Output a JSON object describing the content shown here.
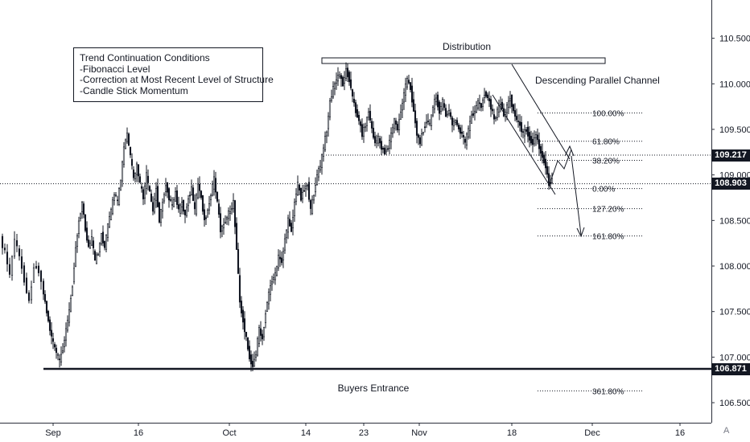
{
  "chart_data": {
    "type": "candlestick",
    "instrument_note": "",
    "y_axis": {
      "ticks": [
        "110.500",
        "110.000",
        "109.500",
        "109.000",
        "108.500",
        "108.000",
        "107.500",
        "107.000",
        "106.500"
      ],
      "tick_values": [
        110.5,
        110.0,
        109.5,
        109.0,
        108.5,
        108.0,
        107.5,
        107.0,
        106.5
      ],
      "range": [
        106.28,
        110.92
      ]
    },
    "x_axis": {
      "ticks": [
        "Sep",
        "16",
        "Oct",
        "14",
        "23",
        "Nov",
        "18",
        "Dec",
        "16"
      ]
    },
    "price_labels": [
      {
        "text": "109.217",
        "value": 109.217
      },
      {
        "text": "108.903",
        "value": 108.903
      },
      {
        "text": "106.871",
        "value": 106.871
      }
    ],
    "horizontal_levels": [
      {
        "name": "resistance-dotted",
        "value": 109.217
      },
      {
        "name": "current-dotted",
        "value": 108.903
      },
      {
        "name": "buyers-entrance",
        "value": 106.871
      }
    ],
    "annotations": {
      "distribution": "Distribution",
      "channel": "Descending Parallel Channel",
      "buyers": "Buyers Entrance"
    },
    "conditions_box": {
      "lines": [
        "Trend Continuation Conditions",
        "-Fibonacci Level",
        "-Correction at Most Recent Level of Structure",
        "-Candle Stick Momentum"
      ]
    },
    "fibonacci": [
      {
        "label": "100.00%",
        "value": 109.68
      },
      {
        "label": "61.80%",
        "value": 109.37
      },
      {
        "label": "38.20%",
        "value": 109.16
      },
      {
        "label": "0.00%",
        "value": 108.85
      },
      {
        "label": "127.20%",
        "value": 108.63
      },
      {
        "label": "161.80%",
        "value": 108.33
      },
      {
        "label": "361.80%",
        "value": 106.63
      }
    ],
    "price_path": [
      [
        0,
        108.3
      ],
      [
        6,
        108.15
      ],
      [
        12,
        107.9
      ],
      [
        18,
        108.3
      ],
      [
        24,
        108.1
      ],
      [
        30,
        107.85
      ],
      [
        36,
        107.6
      ],
      [
        42,
        108.0
      ],
      [
        48,
        107.95
      ],
      [
        54,
        107.7
      ],
      [
        58,
        107.5
      ],
      [
        62,
        107.3
      ],
      [
        66,
        107.15
      ],
      [
        70,
        107.05
      ],
      [
        74,
        106.95
      ],
      [
        78,
        107.1
      ],
      [
        82,
        107.3
      ],
      [
        86,
        107.5
      ],
      [
        90,
        107.8
      ],
      [
        94,
        108.2
      ],
      [
        98,
        108.5
      ],
      [
        102,
        108.7
      ],
      [
        106,
        108.4
      ],
      [
        110,
        108.2
      ],
      [
        114,
        108.3
      ],
      [
        118,
        108.05
      ],
      [
        122,
        108.15
      ],
      [
        126,
        108.35
      ],
      [
        130,
        108.2
      ],
      [
        134,
        108.45
      ],
      [
        138,
        108.6
      ],
      [
        142,
        108.8
      ],
      [
        146,
        108.7
      ],
      [
        150,
        108.95
      ],
      [
        154,
        109.3
      ],
      [
        158,
        109.45
      ],
      [
        162,
        109.2
      ],
      [
        166,
        108.95
      ],
      [
        170,
        109.1
      ],
      [
        174,
        108.9
      ],
      [
        178,
        108.75
      ],
      [
        182,
        109.0
      ],
      [
        186,
        108.8
      ],
      [
        190,
        108.6
      ],
      [
        194,
        108.85
      ],
      [
        198,
        108.5
      ],
      [
        202,
        108.7
      ],
      [
        206,
        108.9
      ],
      [
        210,
        108.75
      ],
      [
        214,
        108.65
      ],
      [
        218,
        108.8
      ],
      [
        222,
        108.6
      ],
      [
        226,
        108.7
      ],
      [
        230,
        108.55
      ],
      [
        234,
        108.75
      ],
      [
        238,
        108.85
      ],
      [
        242,
        108.6
      ],
      [
        246,
        108.9
      ],
      [
        250,
        108.75
      ],
      [
        254,
        108.5
      ],
      [
        258,
        108.6
      ],
      [
        262,
        108.8
      ],
      [
        266,
        108.95
      ],
      [
        270,
        108.7
      ],
      [
        274,
        108.4
      ],
      [
        278,
        108.45
      ],
      [
        282,
        108.55
      ],
      [
        286,
        108.6
      ],
      [
        290,
        108.7
      ],
      [
        294,
        108.2
      ],
      [
        298,
        107.6
      ],
      [
        302,
        107.4
      ],
      [
        306,
        107.2
      ],
      [
        310,
        107.0
      ],
      [
        314,
        106.9
      ],
      [
        318,
        107.05
      ],
      [
        322,
        107.3
      ],
      [
        326,
        107.2
      ],
      [
        330,
        107.5
      ],
      [
        334,
        107.7
      ],
      [
        338,
        107.85
      ],
      [
        342,
        107.9
      ],
      [
        346,
        108.1
      ],
      [
        350,
        108.05
      ],
      [
        354,
        108.3
      ],
      [
        358,
        108.5
      ],
      [
        362,
        108.4
      ],
      [
        366,
        108.7
      ],
      [
        370,
        108.9
      ],
      [
        374,
        108.75
      ],
      [
        378,
        108.85
      ],
      [
        382,
        108.9
      ],
      [
        386,
        108.6
      ],
      [
        390,
        108.8
      ],
      [
        394,
        109.0
      ],
      [
        398,
        109.1
      ],
      [
        402,
        109.3
      ],
      [
        406,
        109.5
      ],
      [
        410,
        109.8
      ],
      [
        414,
        109.95
      ],
      [
        418,
        110.05
      ],
      [
        422,
        110.1
      ],
      [
        426,
        110.0
      ],
      [
        430,
        110.15
      ],
      [
        434,
        110.05
      ],
      [
        438,
        109.85
      ],
      [
        442,
        109.7
      ],
      [
        446,
        109.6
      ],
      [
        450,
        109.45
      ],
      [
        454,
        109.55
      ],
      [
        458,
        109.7
      ],
      [
        462,
        109.5
      ],
      [
        466,
        109.35
      ],
      [
        470,
        109.4
      ],
      [
        474,
        109.3
      ],
      [
        478,
        109.25
      ],
      [
        482,
        109.3
      ],
      [
        486,
        109.45
      ],
      [
        490,
        109.6
      ],
      [
        494,
        109.5
      ],
      [
        498,
        109.7
      ],
      [
        502,
        109.9
      ],
      [
        506,
        110.05
      ],
      [
        510,
        109.95
      ],
      [
        514,
        109.7
      ],
      [
        518,
        109.45
      ],
      [
        522,
        109.35
      ],
      [
        526,
        109.5
      ],
      [
        530,
        109.6
      ],
      [
        534,
        109.55
      ],
      [
        538,
        109.75
      ],
      [
        542,
        109.85
      ],
      [
        546,
        109.7
      ],
      [
        550,
        109.8
      ],
      [
        554,
        109.65
      ],
      [
        558,
        109.7
      ],
      [
        562,
        109.55
      ],
      [
        566,
        109.6
      ],
      [
        570,
        109.5
      ],
      [
        574,
        109.45
      ],
      [
        578,
        109.35
      ],
      [
        582,
        109.5
      ],
      [
        586,
        109.65
      ],
      [
        590,
        109.7
      ],
      [
        594,
        109.8
      ],
      [
        598,
        109.75
      ],
      [
        602,
        109.9
      ],
      [
        606,
        109.85
      ],
      [
        610,
        109.75
      ],
      [
        614,
        109.6
      ],
      [
        618,
        109.7
      ],
      [
        622,
        109.8
      ],
      [
        626,
        109.65
      ],
      [
        630,
        109.75
      ],
      [
        634,
        109.85
      ],
      [
        638,
        109.7
      ],
      [
        642,
        109.6
      ],
      [
        646,
        109.55
      ],
      [
        650,
        109.45
      ],
      [
        654,
        109.5
      ],
      [
        658,
        109.4
      ],
      [
        662,
        109.35
      ],
      [
        666,
        109.45
      ],
      [
        670,
        109.3
      ],
      [
        674,
        109.2
      ],
      [
        678,
        109.1
      ],
      [
        682,
        108.9
      ],
      [
        686,
        108.95
      ]
    ]
  }
}
